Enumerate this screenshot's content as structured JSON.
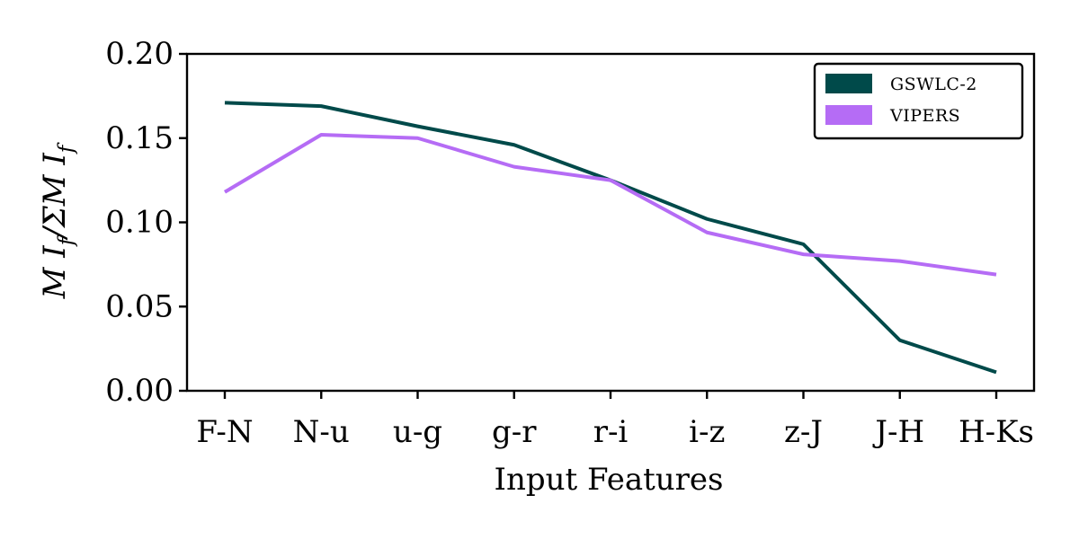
{
  "chart_data": {
    "type": "line",
    "xlabel": "Input Features",
    "ylabel": "MI_f/ΣMI_f",
    "categories": [
      "F-N",
      "N-u",
      "u-g",
      "g-r",
      "r-i",
      "i-z",
      "z-J",
      "J-H",
      "H-Ks"
    ],
    "ylim": [
      0,
      0.2
    ],
    "yticks": [
      "0.00",
      "0.05",
      "0.10",
      "0.15",
      "0.20"
    ],
    "grid": false,
    "legend_position": "top-right",
    "series": [
      {
        "name": "GSWLC-2",
        "color": "#004a4a",
        "values": [
          0.171,
          0.169,
          0.157,
          0.146,
          0.125,
          0.102,
          0.087,
          0.03,
          0.011
        ]
      },
      {
        "name": "VIPERS",
        "color": "#b56cf5",
        "values": [
          0.118,
          0.152,
          0.15,
          0.133,
          0.125,
          0.094,
          0.081,
          0.077,
          0.069
        ]
      }
    ]
  }
}
